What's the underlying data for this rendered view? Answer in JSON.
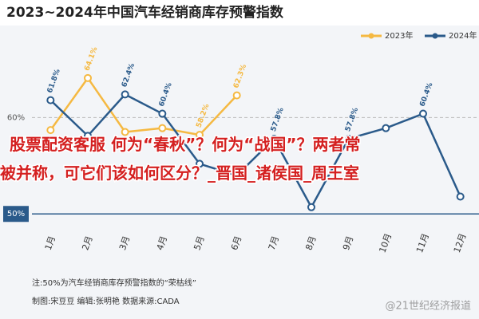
{
  "chart_data": {
    "type": "line",
    "title": "2023~2024年中国汽车经销商库存预警指数",
    "categories": [
      "1月",
      "2月",
      "3月",
      "4月",
      "5月",
      "6月",
      "7月",
      "8月",
      "9月",
      "10月",
      "11月",
      "12月"
    ],
    "series": [
      {
        "name": "2023年",
        "color": "#f5b942",
        "values": [
          58.7,
          64.1,
          58.5,
          58.9,
          58.2,
          62.3,
          null,
          null,
          null,
          null,
          null,
          null
        ],
        "value_labels": [
          null,
          "64.1%",
          null,
          null,
          "58.2%",
          "62.3%",
          null,
          null,
          null,
          null,
          null,
          null
        ]
      },
      {
        "name": "2024年",
        "color": "#2a5a8a",
        "values": [
          61.8,
          58.1,
          62.4,
          60.4,
          55.2,
          54.0,
          57.8,
          50.7,
          57.8,
          58.9,
          60.4,
          51.8
        ],
        "value_labels": [
          "61.8%",
          null,
          "62.4%",
          "60.4%",
          null,
          null,
          "57.8%",
          null,
          "57.8%",
          null,
          "60.4%",
          null
        ]
      }
    ],
    "ylim": [
      48.2,
      69.3
    ],
    "yticks": [
      {
        "value": 50,
        "label": "50%"
      },
      {
        "value": 60,
        "label": "60%"
      }
    ],
    "reference_line": 50,
    "grid": true,
    "legend": "top-right"
  },
  "overlay": "股票配资客服 何为“春秋”？何为“战国”？两者常被并称，可它们该如何区分？_晋国_诸侯国_周王室",
  "notes": [
    "注:50%为汽车经销商库存预警指数的“荣枯线”",
    "制图:宋豆豆  编辑:张明艳  数据来源:CADA"
  ],
  "watermark": "@21世纪经济报道"
}
